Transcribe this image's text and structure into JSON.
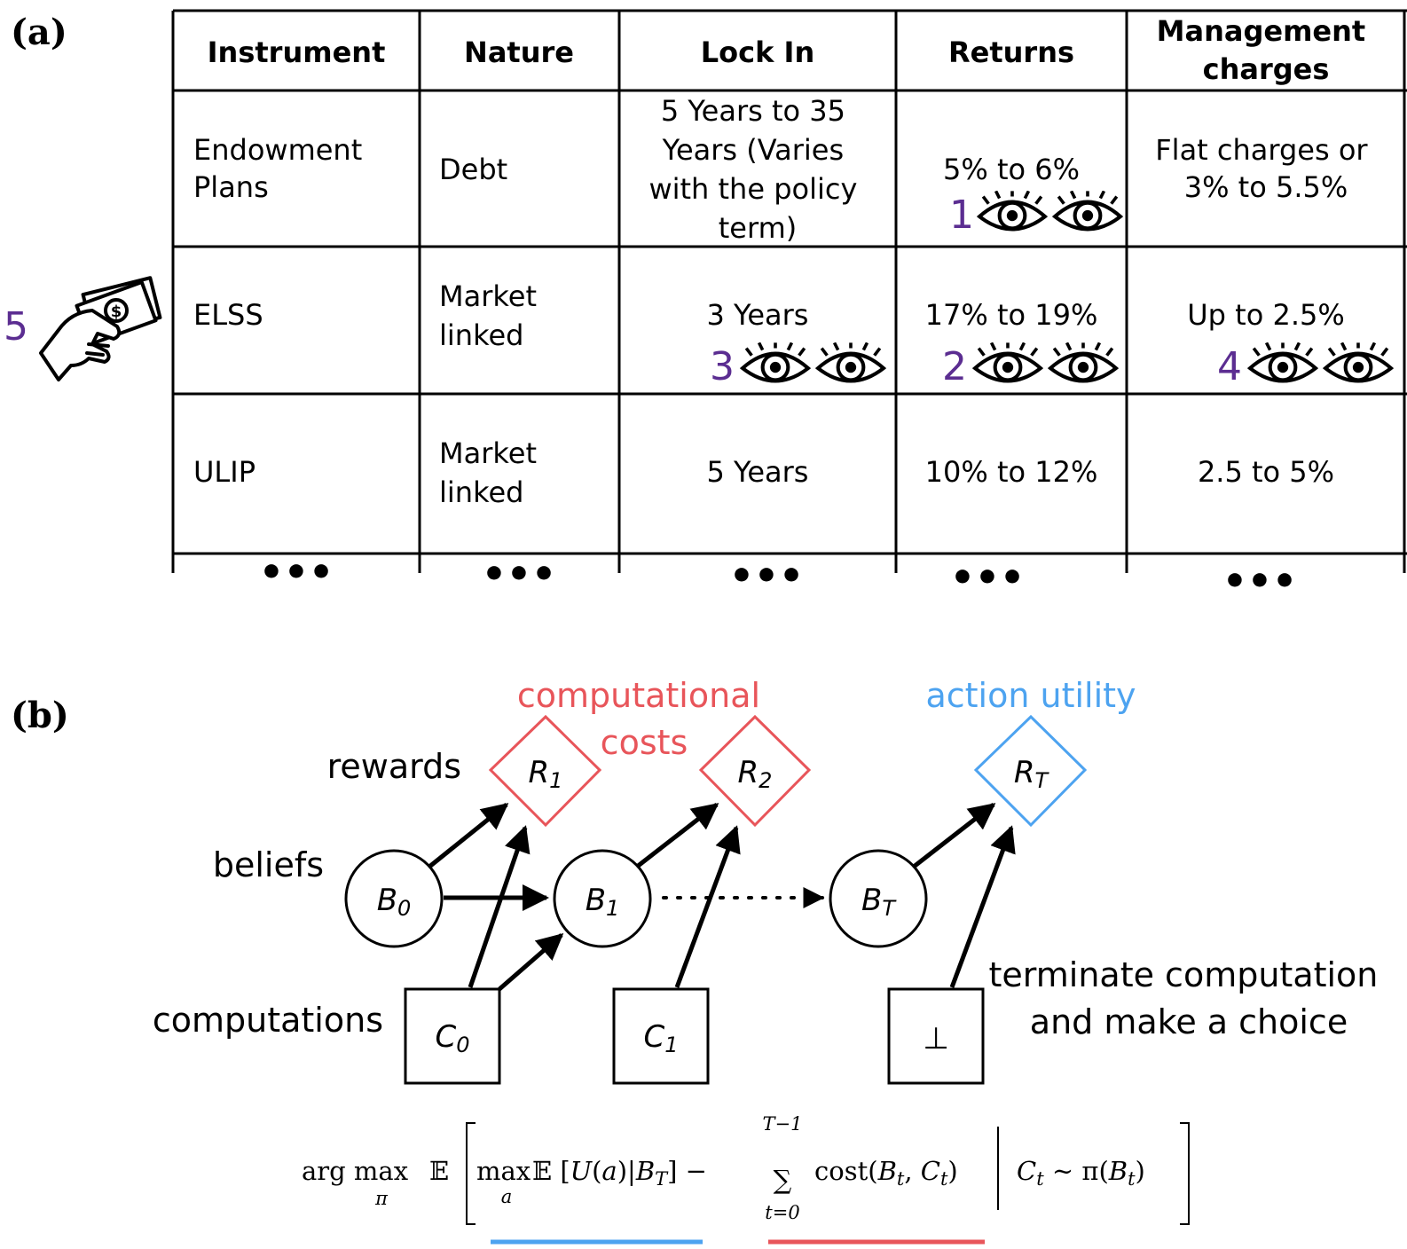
{
  "panel_a": {
    "label": "(a)",
    "table": {
      "headers": [
        "Instrument",
        "Nature",
        "Lock In",
        "Returns",
        "Management charges"
      ],
      "rows": [
        {
          "instrument": "Endowment Plans",
          "nature": "Debt",
          "lock_in": "5 Years to 35 Years (Varies with the policy term)",
          "returns": "5% to 6%",
          "charges": "Flat charges or 3% to 5.5%"
        },
        {
          "instrument": "ELSS",
          "nature": "Market linked",
          "lock_in": "3 Years",
          "returns": "17% to 19%",
          "charges": "Up to 2.5%"
        },
        {
          "instrument": "ULIP",
          "nature": "Market linked",
          "lock_in": "5 Years",
          "returns": "10% to 12%",
          "charges": "2.5 to 5%"
        }
      ],
      "continuation": "•••"
    },
    "gaze_markers": [
      {
        "order": "1",
        "cell": "Endowment Plans / Returns",
        "icon": "eyes-icon"
      },
      {
        "order": "2",
        "cell": "ELSS / Returns",
        "icon": "eyes-icon"
      },
      {
        "order": "3",
        "cell": "ELSS / Lock In",
        "icon": "eyes-icon"
      },
      {
        "order": "4",
        "cell": "ELSS / Management charges",
        "icon": "eyes-icon"
      },
      {
        "order": "5",
        "cell": "ELSS (choice)",
        "icon": "hand-money-icon"
      }
    ]
  },
  "panel_b": {
    "label": "(b)",
    "row_labels": {
      "rewards": "rewards",
      "beliefs": "beliefs",
      "computations": "computations"
    },
    "headers": {
      "computational_costs": [
        "computational",
        "costs"
      ],
      "action_utility": "action utility",
      "terminate": [
        "terminate computation",
        "and make a choice"
      ]
    },
    "nodes": {
      "R1": {
        "base": "R",
        "sub": "1"
      },
      "R2": {
        "base": "R",
        "sub": "2"
      },
      "RT": {
        "base": "R",
        "sub": "T"
      },
      "B0": {
        "base": "B",
        "sub": "0"
      },
      "B1": {
        "base": "B",
        "sub": "1"
      },
      "BT": {
        "base": "B",
        "sub": "T"
      },
      "C0": {
        "base": "C",
        "sub": "0"
      },
      "C1": {
        "base": "C",
        "sub": "1"
      },
      "stop": "⊥"
    },
    "formula": "arg max_π 𝔼 [ max_a 𝔼[U(a)|B_T] − Σ_{t=0}^{T−1} cost(B_t, C_t) | C_t ∼ π(B_t) ]",
    "colors": {
      "costs": "#e8555a",
      "utility": "#4da3f0",
      "order_numbers": "#5b2d91"
    }
  }
}
